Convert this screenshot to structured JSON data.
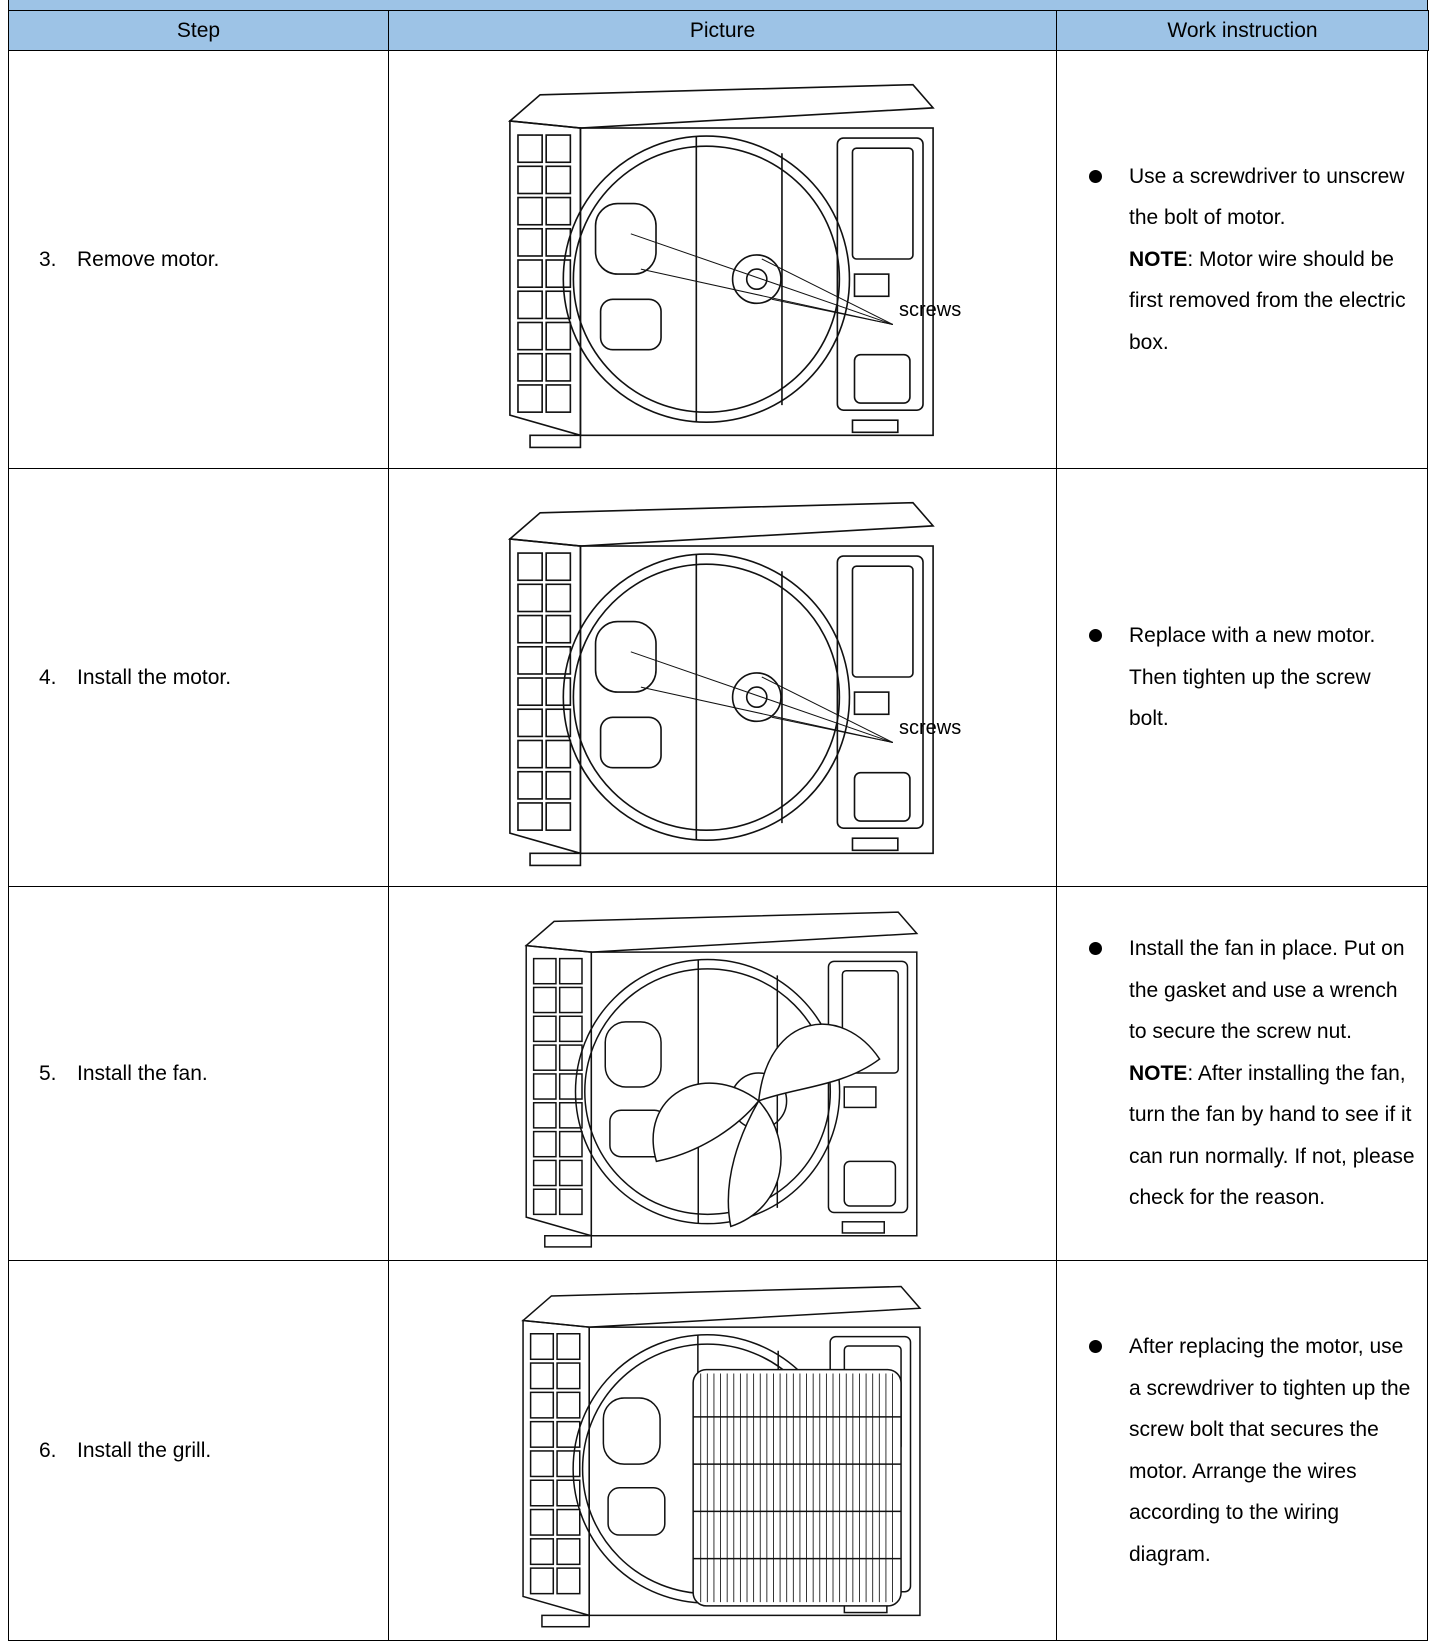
{
  "table": {
    "header": [
      "Step",
      "Picture",
      "Work instruction"
    ],
    "rows": [
      {
        "number": "3.",
        "step": "Remove motor.",
        "picture_label": "screws",
        "bullets": [
          "Use a screwdriver to unscrew the bolt of motor."
        ],
        "note_label": "NOTE",
        "note_text": ": Motor wire should be first removed from the electric box."
      },
      {
        "number": "4.",
        "step": "Install the motor.",
        "picture_label": "screws",
        "bullets": [
          "Replace with a new motor. Then tighten up the screw bolt."
        ]
      },
      {
        "number": "5.",
        "step": "Install the fan.",
        "bullets": [
          "Install the fan in place. Put on the gasket and use a wrench to secure the screw nut."
        ],
        "note_label": "NOTE",
        "note_text": ": After installing the fan, turn the fan by hand to see if it can run normally. If not, please check for the reason."
      },
      {
        "number": "6.",
        "step": "Install the grill.",
        "bullets": [
          "After replacing the motor, use a screwdriver to tighten up the screw bolt that secures the motor. Arrange the wires according to the wiring diagram."
        ]
      }
    ]
  }
}
